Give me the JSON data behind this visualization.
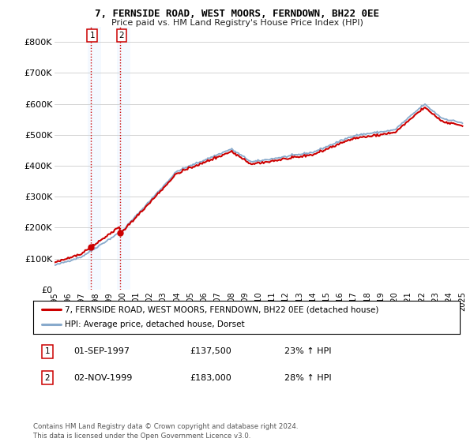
{
  "title": "7, FERNSIDE ROAD, WEST MOORS, FERNDOWN, BH22 0EE",
  "subtitle": "Price paid vs. HM Land Registry's House Price Index (HPI)",
  "legend_line1": "7, FERNSIDE ROAD, WEST MOORS, FERNDOWN, BH22 0EE (detached house)",
  "legend_line2": "HPI: Average price, detached house, Dorset",
  "transaction1_label": "1",
  "transaction1_date": "01-SEP-1997",
  "transaction1_price": "£137,500",
  "transaction1_hpi": "23% ↑ HPI",
  "transaction2_label": "2",
  "transaction2_date": "02-NOV-1999",
  "transaction2_price": "£183,000",
  "transaction2_hpi": "28% ↑ HPI",
  "footer": "Contains HM Land Registry data © Crown copyright and database right 2024.\nThis data is licensed under the Open Government Licence v3.0.",
  "price_line_color": "#cc0000",
  "hpi_line_color": "#88aacc",
  "vline_color": "#cc0000",
  "vline_highlight_color": "#ddeeff",
  "ylim": [
    0,
    850000
  ],
  "yticks": [
    0,
    100000,
    200000,
    300000,
    400000,
    500000,
    600000,
    700000,
    800000
  ],
  "ytick_labels": [
    "£0",
    "£100K",
    "£200K",
    "£300K",
    "£400K",
    "£500K",
    "£600K",
    "£700K",
    "£800K"
  ],
  "transaction_marker_color": "#cc0000",
  "transaction_marker1_x": 1997.67,
  "transaction_marker1_y": 137500,
  "transaction_marker2_x": 1999.84,
  "transaction_marker2_y": 183000,
  "vline1_x": 1997.67,
  "vline2_x": 1999.84,
  "xlim_start": 1995,
  "xlim_end": 2025.5
}
